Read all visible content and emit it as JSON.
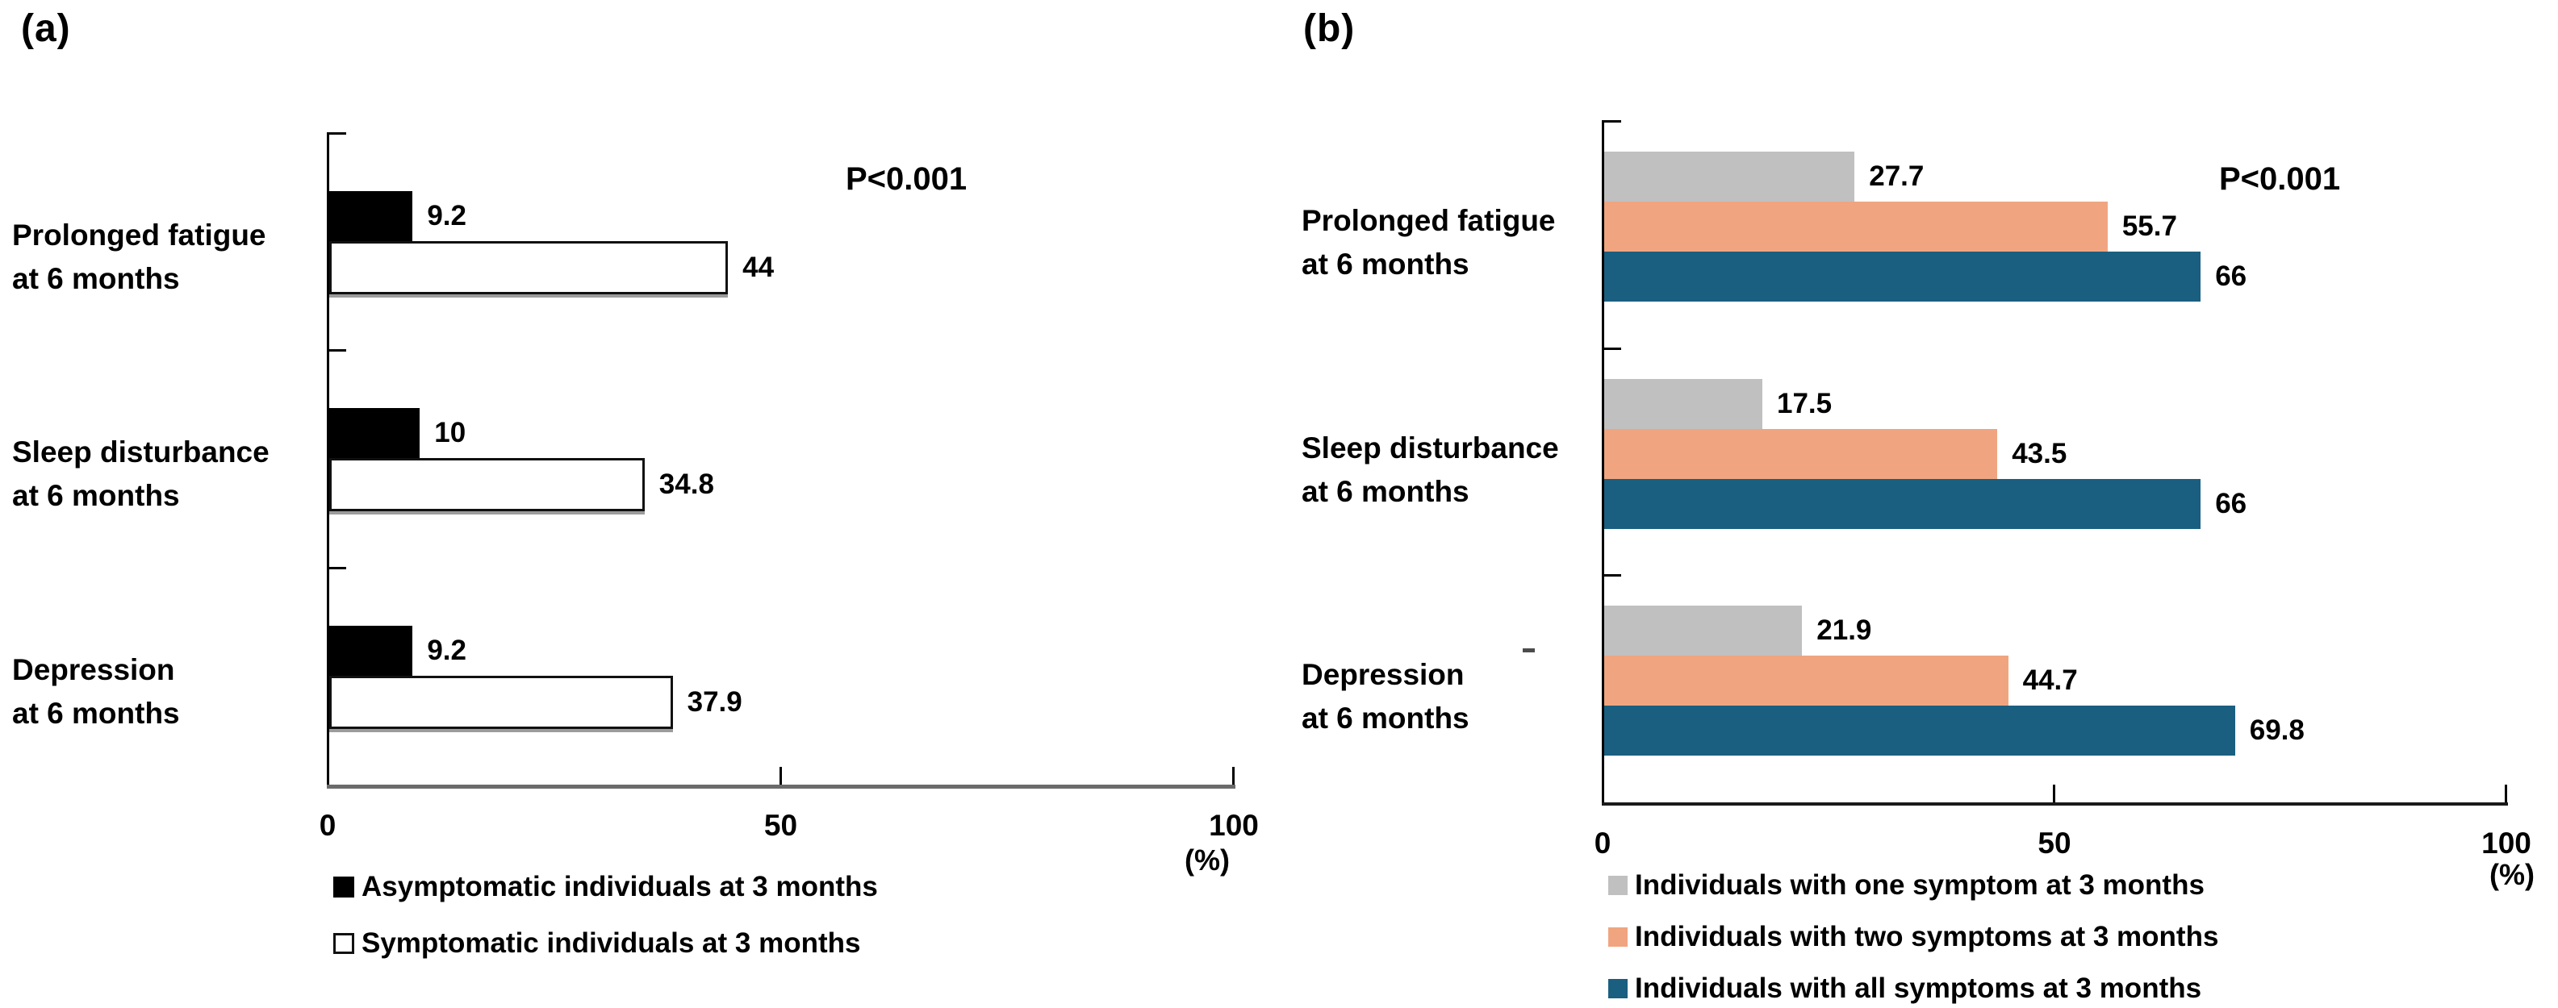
{
  "figure_type": "two-panel horizontal grouped bar chart",
  "colors": {
    "black_series": "#000000",
    "white_series_fill": "#ffffff",
    "white_series_border": "#111111",
    "gray_series": "#c0c0c0",
    "salmon_series": "#f0a580",
    "teal_series": "#1a5f80"
  },
  "chart_data": [
    {
      "type": "bar",
      "orientation": "horizontal",
      "tag": "(a)",
      "p_label": "P<0.001",
      "xlabel": "(%)",
      "xlim": [
        0,
        100
      ],
      "grid": false,
      "legend_position": "bottom",
      "x_ticks": [
        0,
        50,
        100
      ],
      "x_tick_labels": [
        "0",
        "50",
        "100"
      ],
      "categories": [
        [
          "Prolonged fatigue",
          "at 6 months"
        ],
        [
          "Sleep disturbance",
          "at 6 months"
        ],
        [
          "Depression",
          "at 6 months"
        ]
      ],
      "series": [
        {
          "name": "Asymptomatic individuals at 3 months",
          "color": "#000000",
          "values": [
            9.2,
            10,
            9.2
          ],
          "labels": [
            "9.2",
            "10",
            "9.2"
          ]
        },
        {
          "name": "Symptomatic individuals at 3 months",
          "color": "#ffffff",
          "border": "#111111",
          "values": [
            44,
            34.8,
            37.9
          ],
          "labels": [
            "44",
            "34.8",
            "37.9"
          ]
        }
      ]
    },
    {
      "type": "bar",
      "orientation": "horizontal",
      "tag": "(b)",
      "p_label": "P<0.001",
      "xlabel": "(%)",
      "xlim": [
        0,
        100
      ],
      "grid": false,
      "legend_position": "bottom",
      "x_ticks": [
        0,
        50,
        100
      ],
      "x_tick_labels": [
        "0",
        "50",
        "100"
      ],
      "categories": [
        [
          "Prolonged fatigue",
          "at 6 months"
        ],
        [
          "Sleep disturbance",
          "at 6 months"
        ],
        [
          "Depression",
          "at 6 months"
        ]
      ],
      "series": [
        {
          "name": "Individuals with one symptom at 3 months",
          "color": "#c0c0c0",
          "values": [
            27.7,
            17.5,
            21.9
          ],
          "labels": [
            "27.7",
            "17.5",
            "21.9"
          ]
        },
        {
          "name": "Individuals with two symptoms at 3 months",
          "color": "#f0a580",
          "values": [
            55.7,
            43.5,
            44.7
          ],
          "labels": [
            "55.7",
            "43.5",
            "44.7"
          ]
        },
        {
          "name": "Individuals with all symptoms at 3 months",
          "color": "#1a5f80",
          "values": [
            66,
            66,
            69.8
          ],
          "labels": [
            "66",
            "66",
            "69.8"
          ]
        }
      ]
    }
  ]
}
